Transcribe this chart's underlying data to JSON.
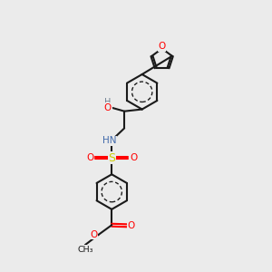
{
  "bg_color": "#ebebeb",
  "bond_color": "#1a1a1a",
  "bond_width": 1.5,
  "colors": {
    "O": "#ff0000",
    "N": "#4169aa",
    "S": "#cccc00",
    "H": "#708090",
    "C": "#1a1a1a"
  },
  "ring_r": 0.72,
  "furan_r": 0.44
}
